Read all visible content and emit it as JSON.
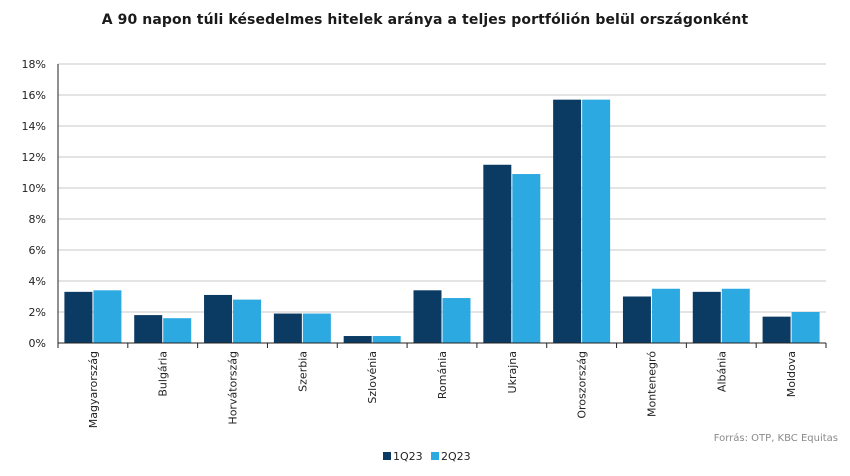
{
  "chart_data": {
    "type": "bar",
    "title": "A 90 napon túli késedelmes hitelek aránya a teljes portfólión belül országonként",
    "categories": [
      "Magyarország",
      "Bulgária",
      "Horvátország",
      "Szerbia",
      "Szlovénia",
      "Románia",
      "Ukrajna",
      "Oroszország",
      "Montenegró",
      "Albánia",
      "Moldova"
    ],
    "series": [
      {
        "name": "1Q23",
        "color": "#0b3a63",
        "values": [
          3.3,
          1.8,
          3.1,
          1.9,
          0.45,
          3.4,
          11.5,
          15.7,
          3.0,
          3.3,
          1.7
        ]
      },
      {
        "name": "2Q23",
        "color": "#2ca9e1",
        "values": [
          3.4,
          1.6,
          2.8,
          1.9,
          0.45,
          2.9,
          10.9,
          15.7,
          3.5,
          3.5,
          2.0
        ]
      }
    ],
    "yticks": [
      "0%",
      "2%",
      "4%",
      "6%",
      "8%",
      "10%",
      "12%",
      "14%",
      "16%",
      "18%"
    ],
    "ylim": [
      0,
      18
    ],
    "grid": true,
    "legend_position": "bottom-center",
    "source": "Forrás: OTP, KBC Equitas"
  }
}
